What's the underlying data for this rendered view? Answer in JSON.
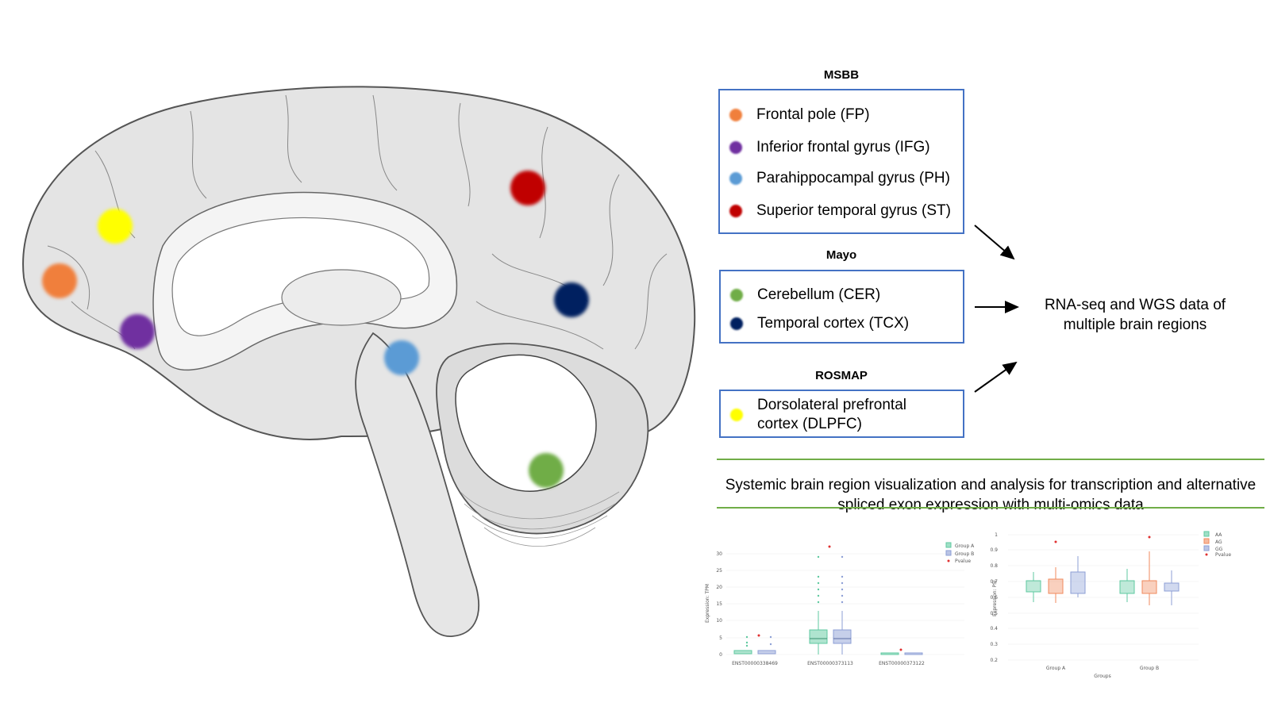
{
  "groups": [
    {
      "name": "MSBB",
      "regions": [
        {
          "label": "Frontal pole (FP)",
          "color": "#f07f3c"
        },
        {
          "label": "Inferior frontal gyrus (IFG)",
          "color": "#7030a0"
        },
        {
          "label": "Parahippocampal gyrus (PH)",
          "color": "#5b9bd5"
        },
        {
          "label": "Superior temporal gyrus (ST)",
          "color": "#c00000"
        }
      ]
    },
    {
      "name": "Mayo",
      "regions": [
        {
          "label": "Cerebellum (CER)",
          "color": "#70ad47"
        },
        {
          "label": "Temporal cortex (TCX)",
          "color": "#002060"
        }
      ]
    },
    {
      "name": "ROSMAP",
      "regions": [
        {
          "label": "Dorsolateral prefrontal cortex (DLPFC)",
          "color": "#ffff00"
        }
      ]
    }
  ],
  "result_text": "RNA-seq and WGS data of multiple brain regions",
  "caption": "Systemic brain region visualization  and analysis for transcription and alternative spliced exon expression with multi-omics data",
  "chart_data": [
    {
      "type": "box",
      "ylabel": "Expression: TPM",
      "categories": [
        "ENST00000338469",
        "ENST00000373113",
        "ENST00000373122"
      ],
      "y_ticks": [
        0,
        5,
        10,
        15,
        20,
        25,
        30
      ],
      "legend": [
        "Group A",
        "Group B",
        "Pvalue"
      ],
      "colors": {
        "group_a": "#5fc9a0",
        "group_b": "#8d9fd6",
        "pvalue": "#e03030"
      }
    },
    {
      "type": "box",
      "ylabel": "Expression: PSI",
      "xlabel": "Groups",
      "categories": [
        "Group A",
        "Group B"
      ],
      "y_ticks": [
        0.2,
        0.3,
        0.4,
        0.5,
        0.6,
        0.7,
        0.8,
        0.9,
        1
      ],
      "legend": [
        "AA",
        "AG",
        "GG",
        "Pvalue"
      ],
      "colors": {
        "AA": "#5fc9a0",
        "AG": "#f08a5d",
        "GG": "#8d9fd6",
        "pvalue": "#e03030"
      }
    }
  ]
}
